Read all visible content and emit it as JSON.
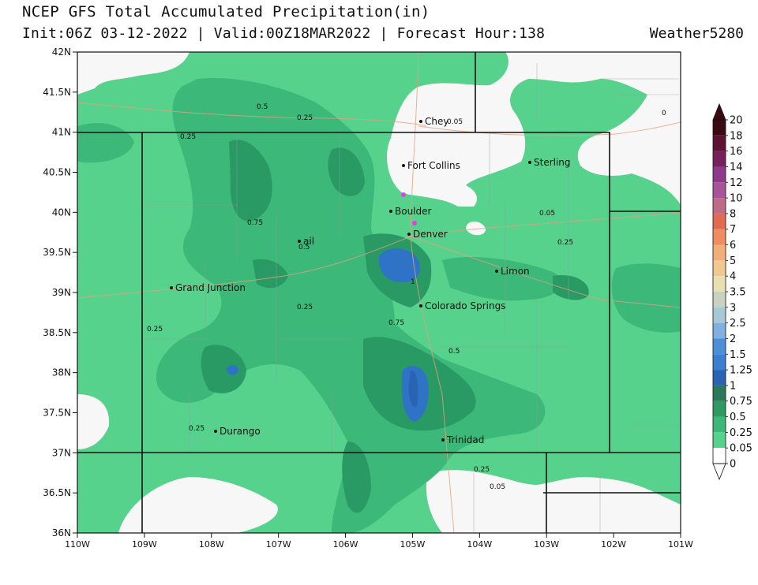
{
  "header": {
    "title": "NCEP GFS Total Accumulated Precipitation(in)",
    "subtitle": "Init:06Z 03-12-2022 | Valid:00Z18MAR2022 | Forecast Hour:138",
    "brand": "Weather5280"
  },
  "map": {
    "lat_labels": [
      "42N",
      "41.5N",
      "41N",
      "40.5N",
      "40N",
      "39.5N",
      "39N",
      "38.5N",
      "38N",
      "37.5N",
      "37N",
      "36.5N",
      "36N"
    ],
    "lon_labels": [
      "110W",
      "109W",
      "108W",
      "107W",
      "106W",
      "105W",
      "104W",
      "103W",
      "102W",
      "101W"
    ],
    "cities": [
      {
        "name": "Cheyenne",
        "label": "Chey"
      },
      {
        "name": "Fort Collins",
        "label": "Fort Collins"
      },
      {
        "name": "Sterling",
        "label": "Sterling"
      },
      {
        "name": "Boulder",
        "label": "Boulder"
      },
      {
        "name": "Denver",
        "label": "Denver"
      },
      {
        "name": "Vail",
        "label": "ail"
      },
      {
        "name": "Limon",
        "label": "Limon"
      },
      {
        "name": "Grand Junction",
        "label": "Grand Junction"
      },
      {
        "name": "Colorado Springs",
        "label": "Colorado Springs"
      },
      {
        "name": "Durango",
        "label": "Durango"
      },
      {
        "name": "Trinidad",
        "label": "Trinidad"
      }
    ],
    "contour_labels": [
      "0.5",
      "0.25",
      "0.05",
      "0",
      "0.25",
      "0.75",
      "0.5",
      "0.05",
      "0.25",
      "0.5",
      "1",
      "0.25",
      "0.75",
      "0.25",
      "0.5",
      "0.25",
      "0.25",
      "0.05"
    ],
    "colors": {
      "light_green": "#56d28c",
      "mid_green": "#3cb878",
      "dark_green": "#2a9a64",
      "blue": "#2f73c6",
      "grey_bg": "#f7f7f7"
    }
  },
  "colorbar": {
    "labels": [
      "20",
      "18",
      "16",
      "14",
      "12",
      "10",
      "8",
      "7",
      "6",
      "5",
      "4",
      "3.5",
      "3",
      "2.5",
      "2",
      "1.5",
      "1.25",
      "1",
      "0.75",
      "0.5",
      "0.25",
      "0.05",
      "0"
    ],
    "colors": [
      "#3a0a12",
      "#5c1230",
      "#76205c",
      "#8e3a8a",
      "#a8549a",
      "#c06a8a",
      "#e26a50",
      "#ef8c60",
      "#f2ae78",
      "#f2c890",
      "#e8e0b0",
      "#c8d2c0",
      "#a8c8d8",
      "#7fb0e0",
      "#4c8fd6",
      "#3a7fd0",
      "#2a62b4",
      "#2a7a5a",
      "#2e9a62",
      "#3cb878",
      "#56d28c",
      "#ffffff"
    ]
  }
}
